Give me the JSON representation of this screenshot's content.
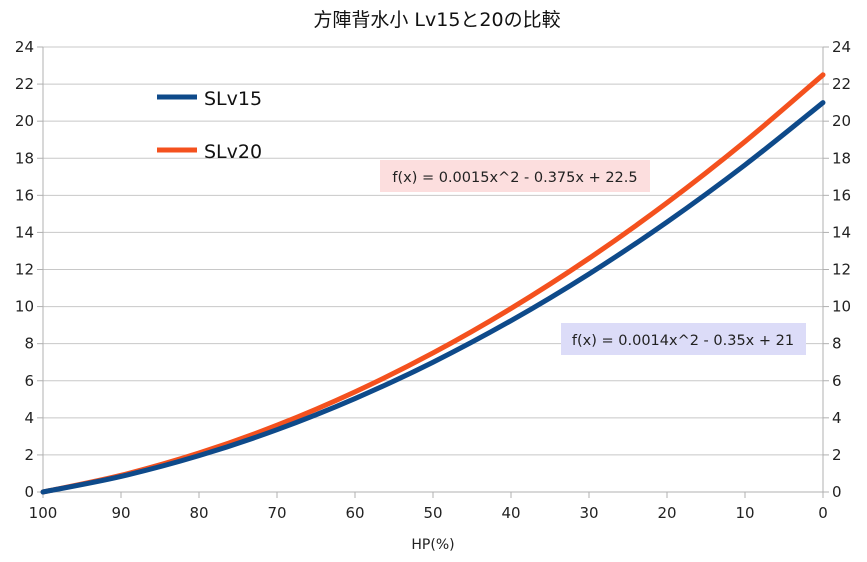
{
  "chart_data": {
    "type": "line",
    "title": "方陣背水小 Lv15と20の比較",
    "xlabel": "HP(%)",
    "ylabel": "",
    "xlim": [
      100,
      0
    ],
    "ylim": [
      0,
      24
    ],
    "x_ticks": [
      "100",
      "90",
      "80",
      "70",
      "60",
      "50",
      "40",
      "30",
      "20",
      "10",
      "0"
    ],
    "y_ticks": [
      "0",
      "2",
      "4",
      "6",
      "8",
      "10",
      "12",
      "14",
      "16",
      "18",
      "20",
      "22",
      "24"
    ],
    "grid": true,
    "legend": "top-left",
    "series": [
      {
        "name": "SLv15",
        "color": "#0e4a8a",
        "x": [
          100,
          90,
          80,
          70,
          60,
          50,
          40,
          30,
          20,
          10,
          0
        ],
        "y": [
          0,
          0.84,
          1.96,
          3.36,
          5.04,
          7.0,
          9.24,
          11.76,
          14.56,
          17.64,
          21.0
        ]
      },
      {
        "name": "SLv20",
        "color": "#f4511e",
        "x": [
          100,
          90,
          80,
          70,
          60,
          50,
          40,
          30,
          20,
          10,
          0
        ],
        "y": [
          0,
          0.9,
          2.1,
          3.6,
          5.4,
          7.5,
          9.9,
          12.6,
          15.6,
          18.9,
          22.5
        ]
      }
    ],
    "annotations": [
      {
        "text": "f(x) = 0.0015x^2 - 0.375x + 22.5",
        "background": "#fcdede"
      },
      {
        "text": "f(x) = 0.0014x^2 - 0.35x + 21",
        "background": "#dcdcf8"
      }
    ]
  }
}
